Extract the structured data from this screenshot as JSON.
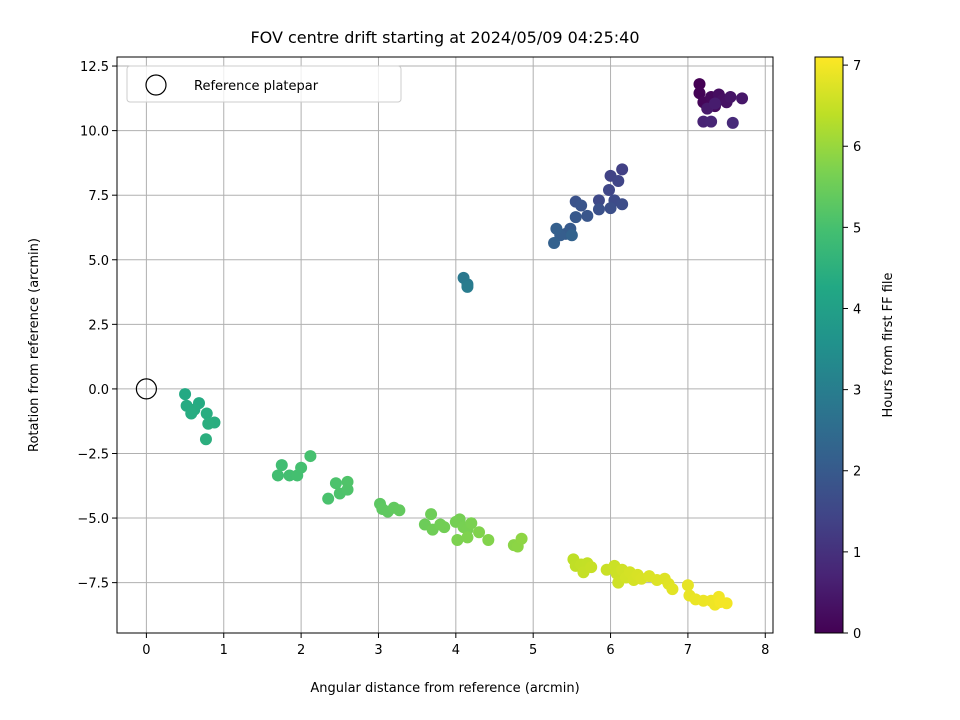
{
  "chart_data": {
    "type": "scatter",
    "title": "FOV centre drift starting at 2024/05/09 04:25:40",
    "xlabel": "Angular distance from reference (arcmin)",
    "ylabel": "Rotation from reference (arcmin)",
    "xlim": [
      -0.38,
      8.1
    ],
    "ylim": [
      -9.45,
      12.85
    ],
    "xticks": [
      0,
      1,
      2,
      3,
      4,
      5,
      6,
      7,
      8
    ],
    "xtick_labels": [
      "0",
      "1",
      "2",
      "3",
      "4",
      "5",
      "6",
      "7",
      "8"
    ],
    "yticks": [
      -7.5,
      -5.0,
      -2.5,
      0.0,
      2.5,
      5.0,
      7.5,
      10.0,
      12.5
    ],
    "ytick_labels": [
      "−7.5",
      "−5.0",
      "−2.5",
      "0.0",
      "2.5",
      "5.0",
      "7.5",
      "10.0",
      "12.5"
    ],
    "grid": true,
    "legend": {
      "placement": "upper-left",
      "entries": [
        {
          "label": "Reference platepar",
          "marker": "open-circle"
        }
      ]
    },
    "reference_point": {
      "x": 0,
      "y": 0
    },
    "colorbar": {
      "label": "Hours from first FF file",
      "colormap": "viridis",
      "range": [
        0,
        7.1
      ],
      "ticks": [
        0,
        1,
        2,
        3,
        4,
        5,
        6,
        7
      ],
      "tick_labels": [
        "0",
        "1",
        "2",
        "3",
        "4",
        "5",
        "6",
        "7"
      ]
    },
    "colormap_stops": [
      "#440154",
      "#482475",
      "#414487",
      "#355f8d",
      "#2a788e",
      "#21918c",
      "#22a884",
      "#44bf70",
      "#7ad151",
      "#bddf26",
      "#fde725"
    ],
    "points": [
      {
        "x": 7.15,
        "y": 11.8,
        "h": 0.0
      },
      {
        "x": 7.15,
        "y": 11.45,
        "h": 0.05
      },
      {
        "x": 7.2,
        "y": 11.1,
        "h": 0.1
      },
      {
        "x": 7.3,
        "y": 11.3,
        "h": 0.15
      },
      {
        "x": 7.35,
        "y": 10.95,
        "h": 0.2
      },
      {
        "x": 7.4,
        "y": 11.4,
        "h": 0.25
      },
      {
        "x": 7.45,
        "y": 11.2,
        "h": 0.3
      },
      {
        "x": 7.5,
        "y": 11.1,
        "h": 0.35
      },
      {
        "x": 7.55,
        "y": 11.3,
        "h": 0.4
      },
      {
        "x": 7.7,
        "y": 11.25,
        "h": 0.45
      },
      {
        "x": 7.25,
        "y": 10.85,
        "h": 0.5
      },
      {
        "x": 7.35,
        "y": 11.05,
        "h": 0.55
      },
      {
        "x": 7.2,
        "y": 10.35,
        "h": 0.7
      },
      {
        "x": 7.3,
        "y": 10.35,
        "h": 0.75
      },
      {
        "x": 7.58,
        "y": 10.3,
        "h": 0.85
      },
      {
        "x": 6.15,
        "y": 8.5,
        "h": 1.35
      },
      {
        "x": 6.0,
        "y": 8.25,
        "h": 1.4
      },
      {
        "x": 6.1,
        "y": 8.05,
        "h": 1.45
      },
      {
        "x": 5.98,
        "y": 7.7,
        "h": 1.5
      },
      {
        "x": 5.85,
        "y": 7.3,
        "h": 1.55
      },
      {
        "x": 6.05,
        "y": 7.3,
        "h": 1.6
      },
      {
        "x": 6.15,
        "y": 7.15,
        "h": 1.65
      },
      {
        "x": 6.0,
        "y": 7.0,
        "h": 1.7
      },
      {
        "x": 5.85,
        "y": 6.95,
        "h": 1.75
      },
      {
        "x": 5.55,
        "y": 7.25,
        "h": 1.8
      },
      {
        "x": 5.62,
        "y": 7.1,
        "h": 1.85
      },
      {
        "x": 5.7,
        "y": 6.7,
        "h": 1.9
      },
      {
        "x": 5.55,
        "y": 6.65,
        "h": 1.95
      },
      {
        "x": 5.48,
        "y": 6.2,
        "h": 2.0
      },
      {
        "x": 5.42,
        "y": 6.0,
        "h": 2.05
      },
      {
        "x": 5.35,
        "y": 5.95,
        "h": 2.1
      },
      {
        "x": 5.3,
        "y": 6.2,
        "h": 2.15
      },
      {
        "x": 5.27,
        "y": 5.65,
        "h": 2.2
      },
      {
        "x": 5.5,
        "y": 5.95,
        "h": 2.25
      },
      {
        "x": 4.1,
        "y": 4.3,
        "h": 2.85
      },
      {
        "x": 4.15,
        "y": 4.05,
        "h": 2.9
      },
      {
        "x": 4.15,
        "y": 3.95,
        "h": 2.95
      },
      {
        "x": 0.5,
        "y": -0.2,
        "h": 4.3
      },
      {
        "x": 0.68,
        "y": -0.55,
        "h": 4.32
      },
      {
        "x": 0.52,
        "y": -0.65,
        "h": 4.34
      },
      {
        "x": 0.62,
        "y": -0.8,
        "h": 4.36
      },
      {
        "x": 0.58,
        "y": -0.95,
        "h": 4.38
      },
      {
        "x": 0.78,
        "y": -0.95,
        "h": 4.4
      },
      {
        "x": 0.88,
        "y": -1.3,
        "h": 4.42
      },
      {
        "x": 0.8,
        "y": -1.35,
        "h": 4.44
      },
      {
        "x": 0.77,
        "y": -1.95,
        "h": 4.46
      },
      {
        "x": 1.75,
        "y": -2.95,
        "h": 4.9
      },
      {
        "x": 1.7,
        "y": -3.35,
        "h": 4.92
      },
      {
        "x": 1.85,
        "y": -3.35,
        "h": 4.94
      },
      {
        "x": 1.95,
        "y": -3.35,
        "h": 4.96
      },
      {
        "x": 2.0,
        "y": -3.05,
        "h": 4.98
      },
      {
        "x": 2.12,
        "y": -2.6,
        "h": 5.0
      },
      {
        "x": 2.35,
        "y": -4.25,
        "h": 5.05
      },
      {
        "x": 2.45,
        "y": -3.65,
        "h": 5.07
      },
      {
        "x": 2.5,
        "y": -4.05,
        "h": 5.09
      },
      {
        "x": 2.6,
        "y": -3.9,
        "h": 5.11
      },
      {
        "x": 2.6,
        "y": -3.6,
        "h": 5.13
      },
      {
        "x": 3.02,
        "y": -4.45,
        "h": 5.3
      },
      {
        "x": 3.05,
        "y": -4.65,
        "h": 5.32
      },
      {
        "x": 3.12,
        "y": -4.75,
        "h": 5.34
      },
      {
        "x": 3.2,
        "y": -4.6,
        "h": 5.36
      },
      {
        "x": 3.27,
        "y": -4.7,
        "h": 5.38
      },
      {
        "x": 3.6,
        "y": -5.25,
        "h": 5.5
      },
      {
        "x": 3.68,
        "y": -4.85,
        "h": 5.52
      },
      {
        "x": 3.7,
        "y": -5.45,
        "h": 5.54
      },
      {
        "x": 3.8,
        "y": -5.25,
        "h": 5.56
      },
      {
        "x": 3.85,
        "y": -5.35,
        "h": 5.58
      },
      {
        "x": 4.0,
        "y": -5.15,
        "h": 5.6
      },
      {
        "x": 4.05,
        "y": -5.05,
        "h": 5.62
      },
      {
        "x": 4.1,
        "y": -5.35,
        "h": 5.64
      },
      {
        "x": 4.15,
        "y": -5.45,
        "h": 5.66
      },
      {
        "x": 4.2,
        "y": -5.2,
        "h": 5.68
      },
      {
        "x": 4.02,
        "y": -5.85,
        "h": 5.7
      },
      {
        "x": 4.15,
        "y": -5.75,
        "h": 5.72
      },
      {
        "x": 4.3,
        "y": -5.55,
        "h": 5.74
      },
      {
        "x": 4.42,
        "y": -5.85,
        "h": 5.76
      },
      {
        "x": 4.75,
        "y": -6.05,
        "h": 5.85
      },
      {
        "x": 4.8,
        "y": -6.1,
        "h": 5.87
      },
      {
        "x": 4.85,
        "y": -5.8,
        "h": 5.89
      },
      {
        "x": 5.52,
        "y": -6.6,
        "h": 6.4
      },
      {
        "x": 5.55,
        "y": -6.85,
        "h": 6.42
      },
      {
        "x": 5.62,
        "y": -6.8,
        "h": 6.44
      },
      {
        "x": 5.7,
        "y": -6.75,
        "h": 6.46
      },
      {
        "x": 5.65,
        "y": -7.1,
        "h": 6.48
      },
      {
        "x": 5.75,
        "y": -6.9,
        "h": 6.5
      },
      {
        "x": 5.95,
        "y": -7.0,
        "h": 6.52
      },
      {
        "x": 6.05,
        "y": -6.85,
        "h": 6.54
      },
      {
        "x": 6.08,
        "y": -7.15,
        "h": 6.56
      },
      {
        "x": 6.1,
        "y": -7.5,
        "h": 6.58
      },
      {
        "x": 6.15,
        "y": -7.0,
        "h": 6.6
      },
      {
        "x": 6.2,
        "y": -7.3,
        "h": 6.62
      },
      {
        "x": 6.25,
        "y": -7.1,
        "h": 6.64
      },
      {
        "x": 6.3,
        "y": -7.4,
        "h": 6.66
      },
      {
        "x": 6.35,
        "y": -7.2,
        "h": 6.68
      },
      {
        "x": 6.4,
        "y": -7.35,
        "h": 6.7
      },
      {
        "x": 6.5,
        "y": -7.25,
        "h": 6.72
      },
      {
        "x": 6.6,
        "y": -7.4,
        "h": 6.74
      },
      {
        "x": 6.7,
        "y": -7.35,
        "h": 6.76
      },
      {
        "x": 6.75,
        "y": -7.55,
        "h": 6.78
      },
      {
        "x": 6.8,
        "y": -7.75,
        "h": 6.8
      },
      {
        "x": 7.0,
        "y": -7.6,
        "h": 6.85
      },
      {
        "x": 7.02,
        "y": -8.0,
        "h": 6.87
      },
      {
        "x": 7.1,
        "y": -8.15,
        "h": 6.89
      },
      {
        "x": 7.2,
        "y": -8.2,
        "h": 6.91
      },
      {
        "x": 7.3,
        "y": -8.2,
        "h": 6.93
      },
      {
        "x": 7.35,
        "y": -8.35,
        "h": 6.95
      },
      {
        "x": 7.4,
        "y": -8.05,
        "h": 6.97
      },
      {
        "x": 7.5,
        "y": -8.3,
        "h": 6.99
      },
      {
        "x": 7.42,
        "y": -8.25,
        "h": 7.0
      }
    ]
  }
}
